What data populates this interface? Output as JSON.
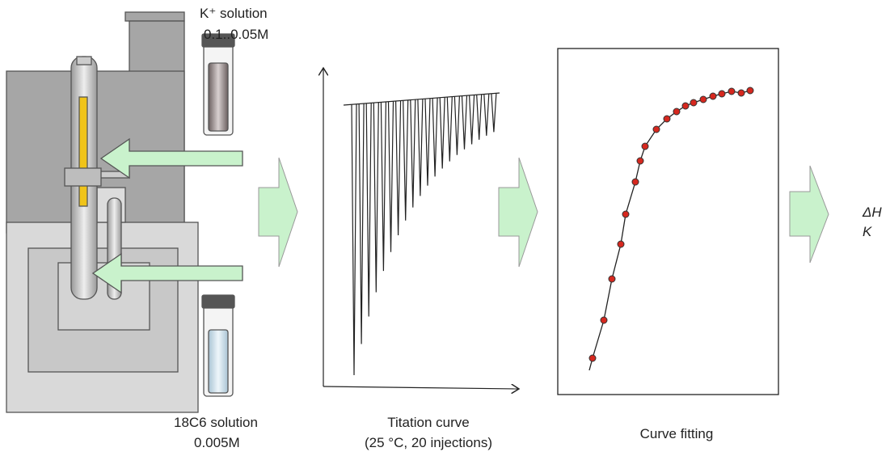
{
  "apparatus": {
    "syringe_label": "K⁺ solution",
    "syringe_concentration": "0.1..0.05M",
    "cell_label": "18C6 solution",
    "cell_concentration": "0.005M"
  },
  "titration": {
    "title": "Titation curve",
    "conditions": "(25 °C, 20 injections)"
  },
  "fitting": {
    "title": "Curve fitting"
  },
  "results": {
    "enthalpy": "ΔH",
    "constant": "K"
  }
}
